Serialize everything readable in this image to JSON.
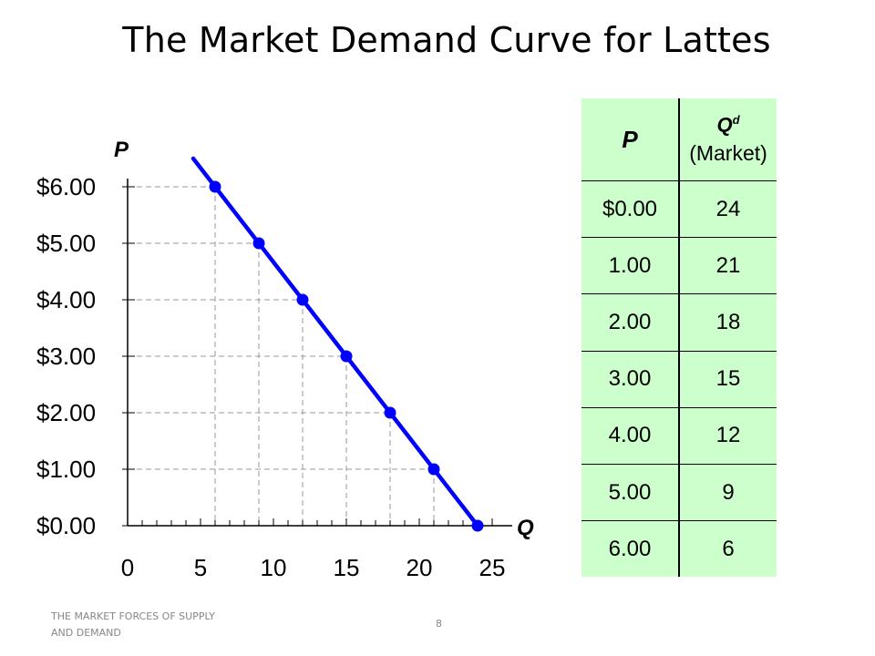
{
  "slide": {
    "title": "The Market Demand Curve for Lattes",
    "footer_left": "THE MARKET FORCES OF SUPPLY AND DEMAND",
    "page_number": "8"
  },
  "chart_data": {
    "type": "line",
    "title": "",
    "xlabel": "Q",
    "ylabel": "P",
    "xlim": [
      0,
      25
    ],
    "ylim": [
      0,
      6
    ],
    "x_ticks": [
      "0",
      "5",
      "10",
      "15",
      "20",
      "25"
    ],
    "y_ticks": [
      "$0.00",
      "$1.00",
      "$2.00",
      "$3.00",
      "$4.00",
      "$5.00",
      "$6.00"
    ],
    "series": [
      {
        "color": "#0000ff",
        "points": [
          {
            "q": 6,
            "p": 6
          },
          {
            "q": 9,
            "p": 5
          },
          {
            "q": 12,
            "p": 4
          },
          {
            "q": 15,
            "p": 3
          },
          {
            "q": 18,
            "p": 2
          },
          {
            "q": 21,
            "p": 1
          },
          {
            "q": 24,
            "p": 0
          }
        ]
      }
    ],
    "line_extends_to": {
      "q": 4.5,
      "p": 6.5
    },
    "guide_lines": "dashed"
  },
  "table": {
    "header_p": "P",
    "header_q": "Q",
    "header_q_sup": "d",
    "header_q_sub": "(Market)",
    "background": "#ccffcc",
    "rows": [
      {
        "p": "$0.00",
        "q": "24"
      },
      {
        "p": "1.00",
        "q": "21"
      },
      {
        "p": "2.00",
        "q": "18"
      },
      {
        "p": "3.00",
        "q": "15"
      },
      {
        "p": "4.00",
        "q": "12"
      },
      {
        "p": "5.00",
        "q": "9"
      },
      {
        "p": "6.00",
        "q": "6"
      }
    ]
  }
}
